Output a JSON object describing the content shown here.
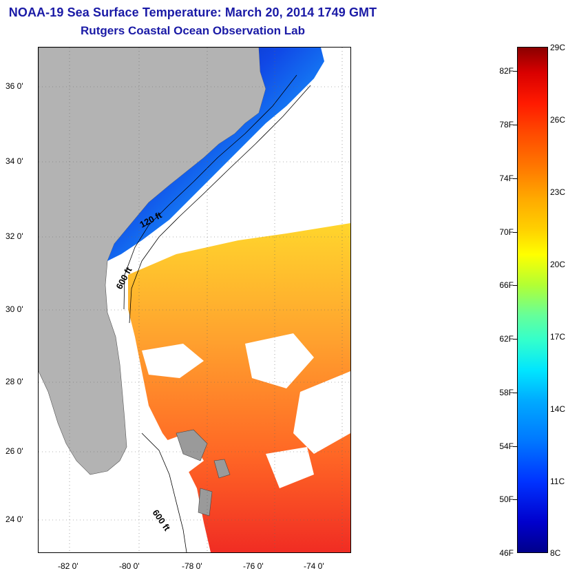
{
  "header": {
    "title": "NOAA-19 Sea Surface Temperature:  March 20, 2014 1749 GMT",
    "subtitle": "Rutgers Coastal Ocean Observation Lab"
  },
  "map": {
    "lat_labels": [
      "36 0'",
      "34 0'",
      "32 0'",
      "30 0'",
      "28 0'",
      "26 0'",
      "24 0'"
    ],
    "lon_labels": [
      "-82 0'",
      "-80 0'",
      "-78 0'",
      "-76 0'",
      "-74 0'"
    ],
    "contour_labels": [
      "120 ft",
      "600 ft",
      "600 ft"
    ],
    "colors": {
      "land": "#b3b3b3",
      "cold": "#0a2a9e",
      "warm": "#ff3a10"
    }
  },
  "colorbar": {
    "fahrenheit_labels": [
      "82F",
      "78F",
      "74F",
      "70F",
      "66F",
      "62F",
      "58F",
      "54F",
      "50F",
      "46F"
    ],
    "celsius_labels": [
      "29C",
      "26C",
      "23C",
      "20C",
      "17C",
      "14C",
      "11C",
      "8C"
    ]
  }
}
